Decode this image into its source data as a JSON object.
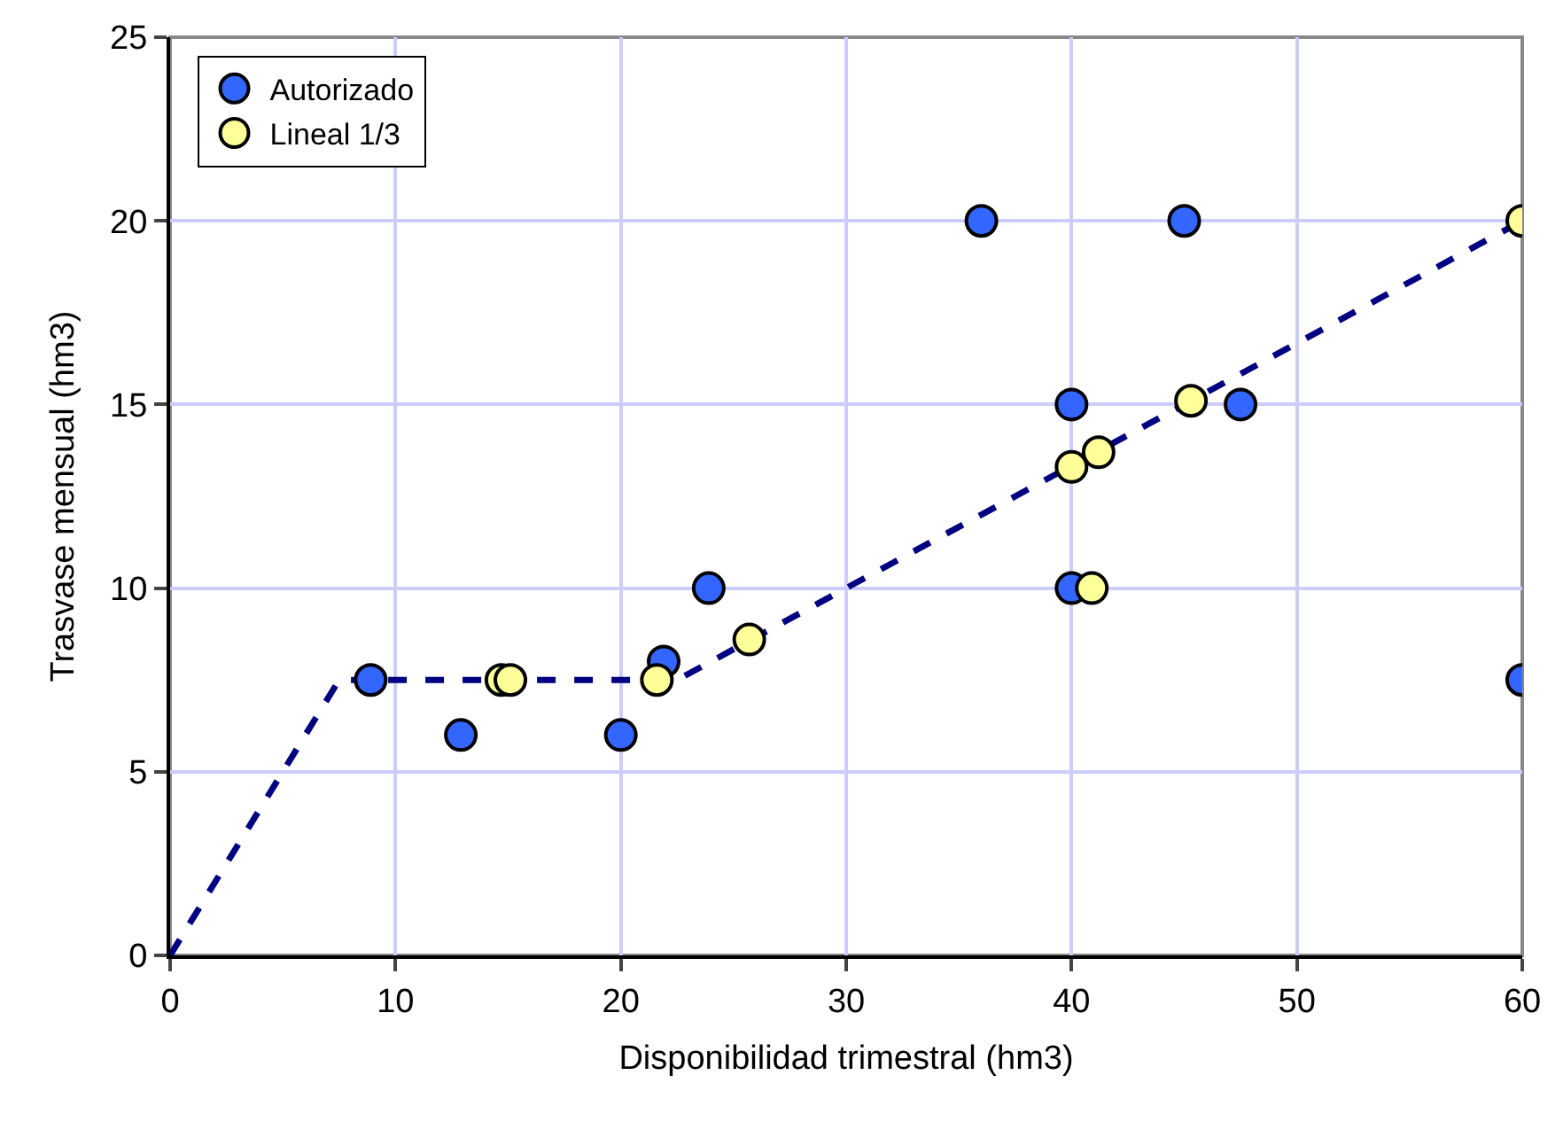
{
  "chart_data": {
    "type": "scatter",
    "xlabel": "Disponibilidad trimestral (hm3)",
    "ylabel": "Trasvase mensual (hm3)",
    "xlim": [
      0,
      60
    ],
    "xticks": [
      0,
      10,
      20,
      30,
      40,
      50,
      60
    ],
    "ylim": [
      0,
      25
    ],
    "yticks": [
      0,
      5,
      10,
      15,
      20,
      25
    ],
    "grid": true,
    "legend": "top left",
    "marker": "circle",
    "series": [
      {
        "type": "line",
        "color": "#000080",
        "line_style": "dashed",
        "marker": "none",
        "x": [
          0,
          7.5,
          22.5,
          60
        ],
        "values": [
          0,
          7.5,
          7.5,
          20
        ]
      },
      {
        "name": "Autorizado",
        "color": "#3366ff",
        "x": [
          8.9,
          12.9,
          20,
          21.9,
          23.9,
          36,
          45,
          40,
          47.5,
          40,
          60
        ],
        "values": [
          7.5,
          6,
          6,
          8,
          10,
          20,
          20,
          15,
          15,
          10,
          7.5
        ]
      },
      {
        "name": "Lineal 1/3",
        "color": "#ffff99",
        "x": [
          14.7,
          15.1,
          21.6,
          25.7,
          40,
          41.2,
          45.3,
          40.9,
          60
        ],
        "values": [
          7.5,
          7.5,
          7.5,
          8.6,
          13.3,
          13.7,
          15.1,
          10,
          20
        ]
      }
    ]
  }
}
